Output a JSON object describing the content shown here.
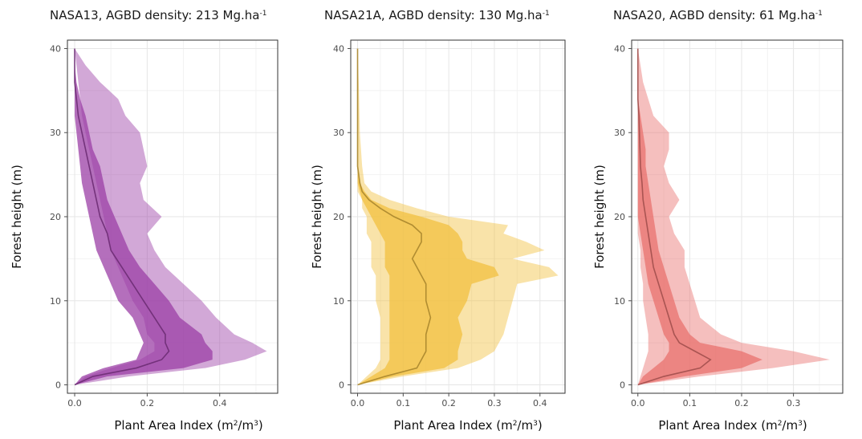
{
  "chart_data": [
    {
      "type": "area",
      "title": "NASA13, AGBD density: 213 Mg.ha",
      "title_sup": "-1",
      "xlabel": "Plant Area Index (m",
      "xlabel_sup1": "2",
      "xlabel_mid": "/m",
      "xlabel_sup2": "3",
      "xlabel_end": ")",
      "ylabel": "Forest height (m)",
      "color": "#9b3fa6",
      "xlim": [
        -0.02,
        0.56
      ],
      "ylim": [
        -1,
        41
      ],
      "xticks": [
        0.0,
        0.2,
        0.4
      ],
      "xtick_labels": [
        "0.0",
        "0.2",
        "0.4"
      ],
      "yticks": [
        0,
        10,
        20,
        30,
        40
      ],
      "ytick_labels": [
        "0",
        "10",
        "20",
        "30",
        "40"
      ],
      "grid": true,
      "height": [
        0,
        1,
        2,
        3,
        4,
        5,
        6,
        8,
        10,
        12,
        14,
        16,
        18,
        20,
        22,
        24,
        26,
        28,
        30,
        32,
        34,
        36,
        38,
        40
      ],
      "outer_low": [
        0.0,
        0.03,
        0.1,
        0.18,
        0.22,
        0.22,
        0.2,
        0.19,
        0.16,
        0.14,
        0.12,
        0.1,
        0.09,
        0.08,
        0.07,
        0.06,
        0.05,
        0.04,
        0.03,
        0.02,
        0.015,
        0.01,
        0.005,
        0.0
      ],
      "outer_high": [
        0.0,
        0.15,
        0.36,
        0.47,
        0.53,
        0.49,
        0.44,
        0.39,
        0.35,
        0.3,
        0.25,
        0.22,
        0.2,
        0.24,
        0.19,
        0.18,
        0.2,
        0.19,
        0.18,
        0.14,
        0.12,
        0.07,
        0.03,
        0.0
      ],
      "inner_low": [
        0.0,
        0.02,
        0.08,
        0.17,
        0.18,
        0.19,
        0.18,
        0.16,
        0.12,
        0.1,
        0.08,
        0.06,
        0.05,
        0.04,
        0.03,
        0.02,
        0.015,
        0.01,
        0.005,
        0.0,
        0.0,
        0.0,
        0.0,
        0.0
      ],
      "inner_high": [
        0.0,
        0.09,
        0.3,
        0.38,
        0.38,
        0.36,
        0.35,
        0.29,
        0.26,
        0.22,
        0.18,
        0.15,
        0.13,
        0.11,
        0.09,
        0.08,
        0.07,
        0.05,
        0.04,
        0.03,
        0.015,
        0.005,
        0.0,
        0.0
      ],
      "median": [
        0.0,
        0.05,
        0.17,
        0.24,
        0.26,
        0.25,
        0.25,
        0.22,
        0.19,
        0.16,
        0.13,
        0.1,
        0.09,
        0.07,
        0.06,
        0.05,
        0.04,
        0.03,
        0.02,
        0.01,
        0.005,
        0.0,
        0.0,
        0.0
      ]
    },
    {
      "type": "area",
      "title": "NASA21A, AGBD density: 130 Mg.ha",
      "title_sup": "-1",
      "xlabel": "Plant Area Index (m",
      "xlabel_sup1": "2",
      "xlabel_mid": "/m",
      "xlabel_sup2": "3",
      "xlabel_end": ")",
      "ylabel": "Forest height (m)",
      "color": "#f2c040",
      "xlim": [
        -0.015,
        0.455
      ],
      "ylim": [
        -1,
        41
      ],
      "xticks": [
        0.0,
        0.1,
        0.2,
        0.3,
        0.4
      ],
      "xtick_labels": [
        "0.0",
        "0.1",
        "0.2",
        "0.3",
        "0.4"
      ],
      "yticks": [
        0,
        10,
        20,
        30,
        40
      ],
      "ytick_labels": [
        "0",
        "10",
        "20",
        "30",
        "40"
      ],
      "grid": true,
      "height": [
        0,
        1,
        2,
        3,
        4,
        6,
        8,
        10,
        12,
        13,
        14,
        15,
        16,
        17,
        18,
        19,
        20,
        21,
        22,
        23,
        24,
        26,
        30,
        35,
        40
      ],
      "outer_low": [
        0.0,
        0.02,
        0.04,
        0.05,
        0.05,
        0.05,
        0.05,
        0.04,
        0.04,
        0.04,
        0.03,
        0.03,
        0.03,
        0.03,
        0.02,
        0.02,
        0.02,
        0.01,
        0.01,
        0.0,
        0.0,
        0.0,
        0.0,
        0.0,
        0.0
      ],
      "outer_high": [
        0.0,
        0.1,
        0.22,
        0.27,
        0.3,
        0.32,
        0.33,
        0.34,
        0.35,
        0.44,
        0.42,
        0.34,
        0.41,
        0.37,
        0.32,
        0.33,
        0.2,
        0.13,
        0.07,
        0.03,
        0.015,
        0.01,
        0.005,
        0.003,
        0.0
      ],
      "inner_low": [
        0.0,
        0.03,
        0.06,
        0.07,
        0.07,
        0.07,
        0.07,
        0.07,
        0.07,
        0.07,
        0.06,
        0.06,
        0.06,
        0.06,
        0.05,
        0.04,
        0.03,
        0.02,
        0.01,
        0.005,
        0.0,
        0.0,
        0.0,
        0.0,
        0.0
      ],
      "inner_high": [
        0.0,
        0.08,
        0.19,
        0.22,
        0.22,
        0.23,
        0.22,
        0.24,
        0.25,
        0.31,
        0.3,
        0.24,
        0.23,
        0.23,
        0.22,
        0.2,
        0.14,
        0.07,
        0.03,
        0.015,
        0.005,
        0.0,
        0.0,
        0.0,
        0.0
      ],
      "median": [
        0.0,
        0.06,
        0.13,
        0.14,
        0.15,
        0.15,
        0.16,
        0.15,
        0.15,
        0.14,
        0.13,
        0.12,
        0.13,
        0.14,
        0.14,
        0.12,
        0.08,
        0.05,
        0.025,
        0.01,
        0.005,
        0.0,
        0.0,
        0.0,
        0.0
      ]
    },
    {
      "type": "area",
      "title": "NASA20, AGBD density: 61 Mg.ha",
      "title_sup": "-1",
      "xlabel": "Plant Area Index (m",
      "xlabel_sup1": "2",
      "xlabel_mid": "/m",
      "xlabel_sup2": "3",
      "xlabel_end": ")",
      "ylabel": "Forest height (m)",
      "color": "#e8716e",
      "xlim": [
        -0.012,
        0.395
      ],
      "ylim": [
        -1,
        41
      ],
      "xticks": [
        0.0,
        0.1,
        0.2,
        0.3
      ],
      "xtick_labels": [
        "0.0",
        "0.1",
        "0.2",
        "0.3"
      ],
      "yticks": [
        0,
        10,
        20,
        30,
        40
      ],
      "ytick_labels": [
        "0",
        "10",
        "20",
        "30",
        "40"
      ],
      "grid": true,
      "height": [
        0,
        1,
        2,
        3,
        4,
        5,
        6,
        8,
        10,
        12,
        14,
        16,
        18,
        20,
        22,
        24,
        26,
        28,
        30,
        32,
        34,
        36,
        38,
        40
      ],
      "outer_low": [
        0.0,
        0.005,
        0.01,
        0.015,
        0.02,
        0.02,
        0.02,
        0.015,
        0.01,
        0.01,
        0.005,
        0.005,
        0.0,
        0.0,
        0.0,
        0.0,
        0.0,
        0.0,
        0.0,
        0.0,
        0.0,
        0.0,
        0.0,
        0.0
      ],
      "outer_high": [
        0.0,
        0.12,
        0.26,
        0.37,
        0.3,
        0.2,
        0.16,
        0.12,
        0.11,
        0.1,
        0.09,
        0.09,
        0.07,
        0.06,
        0.08,
        0.06,
        0.05,
        0.06,
        0.06,
        0.03,
        0.02,
        0.01,
        0.005,
        0.0
      ],
      "inner_low": [
        0.0,
        0.01,
        0.03,
        0.05,
        0.06,
        0.06,
        0.05,
        0.04,
        0.03,
        0.02,
        0.015,
        0.01,
        0.005,
        0.0,
        0.0,
        0.0,
        0.0,
        0.0,
        0.0,
        0.0,
        0.0,
        0.0,
        0.0,
        0.0
      ],
      "inner_high": [
        0.0,
        0.09,
        0.2,
        0.24,
        0.2,
        0.12,
        0.1,
        0.08,
        0.07,
        0.06,
        0.05,
        0.04,
        0.035,
        0.03,
        0.025,
        0.02,
        0.015,
        0.015,
        0.01,
        0.005,
        0.0,
        0.0,
        0.0,
        0.0
      ],
      "median": [
        0.0,
        0.05,
        0.12,
        0.14,
        0.11,
        0.08,
        0.07,
        0.06,
        0.05,
        0.04,
        0.03,
        0.025,
        0.02,
        0.015,
        0.01,
        0.008,
        0.005,
        0.004,
        0.003,
        0.002,
        0.0,
        0.0,
        0.0,
        0.0
      ]
    }
  ]
}
